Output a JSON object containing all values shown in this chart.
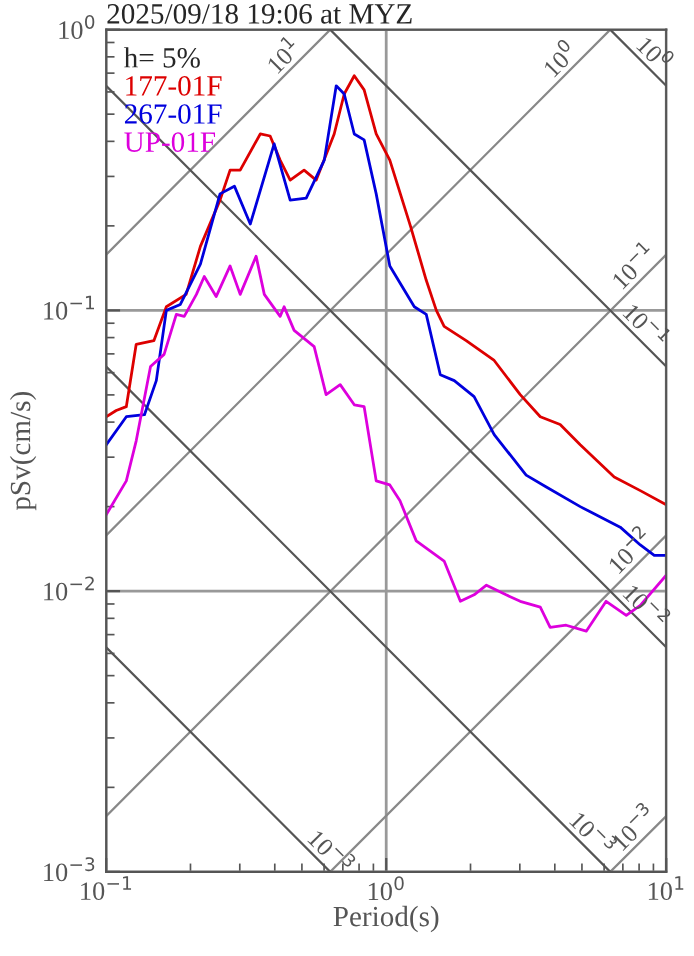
{
  "chart_data": {
    "type": "line",
    "title": "2025/09/18 19:06 at MYZ",
    "xlabel": "Period(s)",
    "ylabel": "pSv(cm/s)",
    "legend_title": "h= 5%",
    "log": "xy",
    "grid": true,
    "legend": "top left",
    "xlim": [
      0.1,
      10
    ],
    "ylim": [
      0.001,
      1
    ],
    "xticks": [
      {
        "value": 0.1,
        "label": "10$^{−1}$"
      },
      {
        "value": 1,
        "label": "10$^{0}$"
      },
      {
        "value": 10,
        "label": "10$^{1}$"
      }
    ],
    "yticks": [
      {
        "value": 0.001,
        "label": "10$^{−3}$"
      },
      {
        "value": 0.01,
        "label": "10$^{−2}$"
      },
      {
        "value": 0.1,
        "label": "10$^{−1}$"
      },
      {
        "value": 1,
        "label": "10$^{0}$"
      }
    ],
    "series": [
      {
        "color": "#888888",
        "x": [
          0.1,
          0.631
        ],
        "values": [
          0.158,
          1
        ]
      },
      {
        "color": "#888888",
        "x": [
          0.1,
          6.31
        ],
        "values": [
          0.0158,
          1
        ]
      },
      {
        "color": "#888888",
        "x": [
          0.1,
          10
        ],
        "values": [
          0.00158,
          0.158
        ]
      },
      {
        "color": "#888888",
        "x": [
          0.631,
          10
        ],
        "values": [
          0.001,
          0.0158
        ]
      },
      {
        "color": "#888888",
        "x": [
          6.31,
          10
        ],
        "values": [
          0.001,
          0.00158
        ]
      },
      {
        "color": "#555555",
        "x": [
          6.31,
          10
        ],
        "values": [
          1,
          0.631
        ]
      },
      {
        "color": "#555555",
        "x": [
          0.631,
          10
        ],
        "values": [
          1,
          0.0631
        ]
      },
      {
        "color": "#555555",
        "x": [
          0.1,
          10
        ],
        "values": [
          0.631,
          0.00631
        ]
      },
      {
        "color": "#555555",
        "x": [
          0.1,
          6.31
        ],
        "values": [
          0.0631,
          0.001
        ]
      },
      {
        "color": "#555555",
        "x": [
          0.1,
          0.631
        ],
        "values": [
          0.00631,
          0.001
        ]
      },
      {
        "name": "177-01F",
        "color": "#dd0000",
        "x": [
          0.1,
          0.1086,
          0.118,
          0.128,
          0.148,
          0.164,
          0.193,
          0.217,
          0.255,
          0.277,
          0.301,
          0.355,
          0.385,
          0.418,
          0.454,
          0.509,
          0.562,
          0.652,
          0.708,
          0.769,
          0.834,
          0.921,
          1.03,
          1.22,
          1.39,
          1.51,
          1.61,
          1.93,
          2.43,
          3.01,
          3.55,
          4.18,
          4.93,
          6.52,
          8.08,
          10
        ],
        "values": [
          0.0418,
          0.044,
          0.0454,
          0.0757,
          0.078,
          0.103,
          0.114,
          0.169,
          0.247,
          0.316,
          0.316,
          0.425,
          0.418,
          0.343,
          0.291,
          0.316,
          0.291,
          0.425,
          0.59,
          0.685,
          0.61,
          0.425,
          0.343,
          0.2,
          0.128,
          0.1,
          0.0877,
          0.078,
          0.0663,
          0.0501,
          0.0418,
          0.0392,
          0.0332,
          0.0255,
          0.0228,
          0.0203
        ]
      },
      {
        "name": "267-01F",
        "color": "#0000dd",
        "x": [
          0.1,
          0.118,
          0.137,
          0.151,
          0.164,
          0.184,
          0.217,
          0.255,
          0.287,
          0.327,
          0.398,
          0.454,
          0.518,
          0.601,
          0.663,
          0.708,
          0.769,
          0.834,
          0.921,
          1.03,
          1.26,
          1.39,
          1.56,
          1.75,
          2.06,
          2.43,
          3.16,
          3.73,
          4.93,
          6.85,
          8.08,
          9.06,
          10
        ],
        "values": [
          0.0332,
          0.0418,
          0.0425,
          0.0562,
          0.1,
          0.105,
          0.146,
          0.26,
          0.277,
          0.203,
          0.392,
          0.247,
          0.251,
          0.343,
          0.631,
          0.59,
          0.425,
          0.405,
          0.26,
          0.144,
          0.103,
          0.0968,
          0.059,
          0.0562,
          0.0493,
          0.0361,
          0.0259,
          0.0235,
          0.02,
          0.0169,
          0.0146,
          0.0134,
          0.0134
        ]
      },
      {
        "name": "UP-01F",
        "color": "#dd00dd",
        "x": [
          0.1,
          0.118,
          0.128,
          0.144,
          0.161,
          0.178,
          0.19,
          0.21,
          0.224,
          0.247,
          0.277,
          0.301,
          0.343,
          0.367,
          0.418,
          0.432,
          0.469,
          0.553,
          0.61,
          0.685,
          0.769,
          0.834,
          0.921,
          1.03,
          1.12,
          1.28,
          1.61,
          1.84,
          2.06,
          2.28,
          2.68,
          3.01,
          3.55,
          3.85,
          4.39,
          5.18,
          6.1,
          7.2,
          8.08,
          10
        ],
        "values": [
          0.0187,
          0.0247,
          0.0343,
          0.0631,
          0.0697,
          0.0968,
          0.0952,
          0.114,
          0.132,
          0.112,
          0.144,
          0.114,
          0.156,
          0.114,
          0.0952,
          0.103,
          0.0849,
          0.0743,
          0.0501,
          0.0544,
          0.0461,
          0.0454,
          0.0247,
          0.0239,
          0.021,
          0.0151,
          0.0128,
          0.0092,
          0.0097,
          0.0105,
          0.0097,
          0.0092,
          0.00877,
          0.00743,
          0.00756,
          0.0072,
          0.0092,
          0.0082,
          0.0089,
          0.0114
        ]
      }
    ],
    "annotations": [
      {
        "text": "10$^{1}$",
        "x": 0.468,
        "y": 0.742
      },
      {
        "text": "10$^{0}$",
        "x": 4.54,
        "y": 0.72
      },
      {
        "text": "10$^{0}$",
        "x": 8.32,
        "y": 0.758
      },
      {
        "text": "10$^{−1}$",
        "x": 8.32,
        "y": 0.132
      },
      {
        "text": "10$^{−1}$",
        "x": 7.76,
        "y": 0.0813
      },
      {
        "text": "10$^{−2}$",
        "x": 8.07,
        "y": 0.0128
      },
      {
        "text": "10$^{−2}$",
        "x": 7.76,
        "y": 0.00813
      },
      {
        "text": "10$^{−3}$",
        "x": 0.581,
        "y": 0.001086
      },
      {
        "text": "10$^{−3}$",
        "x": 5.0,
        "y": 0.00126
      },
      {
        "text": "10$^{−3}$",
        "x": 8.32,
        "y": 0.001319
      }
    ]
  }
}
